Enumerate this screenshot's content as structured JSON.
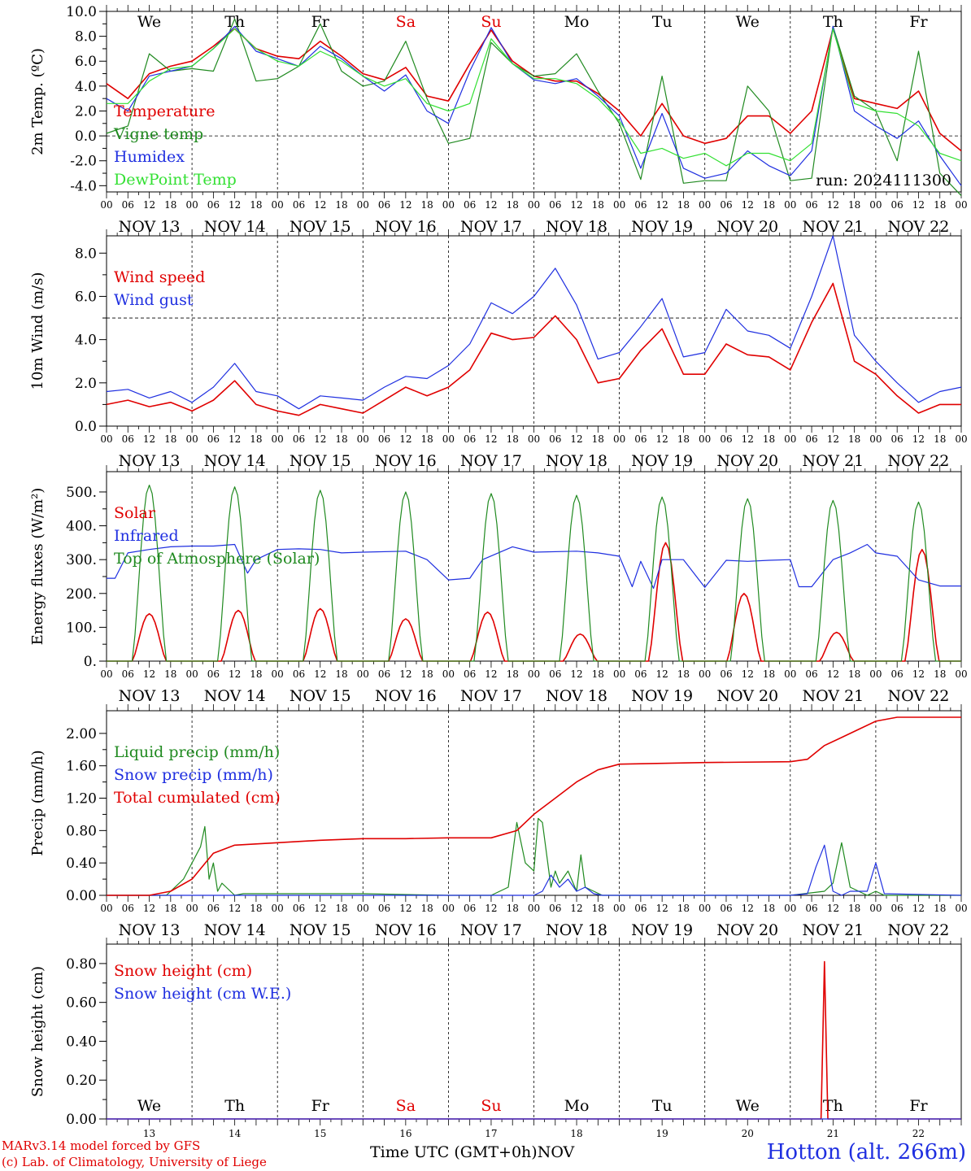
{
  "footer": {
    "credit_line1": "MARv3.14 model forced by GFS",
    "credit_line2": "(c) Lab. of Climatology, University of Liege",
    "xaxis_title": "Time UTC (GMT+0h)NOV",
    "station": "Hotton (alt. 266m)"
  },
  "colors": {
    "red": "#e00000",
    "green": "#208a20",
    "blue": "#1f2fe0",
    "light_green": "#33e033",
    "axis": "#000000",
    "weekend": "#e00000"
  },
  "time_axis": {
    "hour_ticks": [
      "00",
      "06",
      "12",
      "18"
    ],
    "dates": [
      "NOV 13",
      "NOV 14",
      "NOV 15",
      "NOV 16",
      "NOV 17",
      "NOV 18",
      "NOV 19",
      "NOV 20",
      "NOV 21",
      "NOV 22"
    ],
    "weekdays": [
      "We",
      "Th",
      "Fr",
      "Sa",
      "Su",
      "Mo",
      "Tu",
      "We",
      "Th",
      "Fr"
    ],
    "weekday_is_weekend": [
      false,
      false,
      false,
      true,
      true,
      false,
      false,
      false,
      false,
      false
    ],
    "day_numbers": [
      "13",
      "14",
      "15",
      "16",
      "17",
      "18",
      "19",
      "20",
      "21",
      "22"
    ]
  },
  "chart_data": [
    {
      "type": "line",
      "id": "temperature",
      "ylabel": "2m Temp. (ºC)",
      "ylim": [
        -4.5,
        10
      ],
      "yticks": [
        "-4.0",
        "-2.0",
        "0.0",
        "2.0",
        "4.0",
        "6.0",
        "8.0",
        "10.0"
      ],
      "ytick_values": [
        -4,
        -2,
        0,
        2,
        4,
        6,
        8,
        10
      ],
      "reference_line": 0,
      "annotation": "run: 2024111300",
      "x_unit": "days since Nov 13 00 UTC",
      "series": [
        {
          "name": "Temperature",
          "color": "red",
          "x": [
            0,
            0.25,
            0.5,
            0.75,
            1,
            1.25,
            1.5,
            1.75,
            2,
            2.25,
            2.5,
            2.75,
            3,
            3.25,
            3.5,
            3.75,
            4,
            4.25,
            4.5,
            4.75,
            5,
            5.25,
            5.5,
            5.75,
            6,
            6.25,
            6.5,
            6.75,
            7,
            7.25,
            7.5,
            7.75,
            8,
            8.25,
            8.5,
            8.75,
            9,
            9.25,
            9.5,
            9.75,
            10
          ],
          "values": [
            4.2,
            3.0,
            5.0,
            5.6,
            6.0,
            7.2,
            8.6,
            7.0,
            6.4,
            6.2,
            7.6,
            6.4,
            5.0,
            4.5,
            5.5,
            3.2,
            2.8,
            5.8,
            8.5,
            6.0,
            4.8,
            4.4,
            4.4,
            3.4,
            2.0,
            0.0,
            2.6,
            0.0,
            -0.6,
            -0.2,
            1.6,
            1.6,
            0.2,
            2.0,
            8.6,
            3.0,
            2.6,
            2.2,
            3.6,
            0.2,
            -1.2
          ]
        },
        {
          "name": "Vigne temp",
          "color": "green",
          "x": [
            0,
            0.25,
            0.5,
            0.75,
            1,
            1.25,
            1.5,
            1.75,
            2,
            2.25,
            2.5,
            2.75,
            3,
            3.25,
            3.5,
            3.75,
            4,
            4.25,
            4.5,
            4.75,
            5,
            5.25,
            5.5,
            5.75,
            6,
            6.25,
            6.5,
            6.75,
            7,
            7.25,
            7.5,
            7.75,
            8,
            8.25,
            8.5,
            8.75,
            9,
            9.25,
            9.5,
            9.75,
            10
          ],
          "values": [
            0.2,
            0.8,
            6.6,
            5.2,
            5.4,
            5.2,
            9.4,
            4.4,
            4.6,
            5.6,
            9.0,
            5.2,
            4.0,
            4.4,
            7.6,
            3.0,
            -0.6,
            -0.2,
            7.5,
            5.8,
            4.8,
            5.0,
            6.6,
            3.6,
            1.0,
            -3.5,
            4.8,
            -3.8,
            -3.6,
            -3.6,
            4.0,
            2.0,
            -3.6,
            -3.4,
            8.8,
            3.2,
            2.0,
            -2.0,
            6.8,
            -3.0,
            -4.8
          ]
        },
        {
          "name": "Humidex",
          "color": "blue",
          "x": [
            0,
            0.25,
            0.5,
            0.75,
            1,
            1.25,
            1.5,
            1.75,
            2,
            2.25,
            2.5,
            2.75,
            3,
            3.25,
            3.5,
            3.75,
            4,
            4.25,
            4.5,
            4.75,
            5,
            5.25,
            5.5,
            5.75,
            6,
            6.25,
            6.5,
            6.75,
            7,
            7.25,
            7.5,
            7.75,
            8,
            8.25,
            8.5,
            8.75,
            9,
            9.25,
            9.5,
            9.75,
            10
          ],
          "values": [
            3.0,
            2.0,
            4.8,
            5.2,
            5.6,
            7.0,
            8.8,
            6.8,
            6.2,
            5.6,
            7.2,
            6.2,
            4.8,
            3.6,
            4.9,
            2.0,
            1.0,
            5.2,
            8.7,
            5.8,
            4.5,
            4.2,
            4.6,
            3.2,
            1.6,
            -2.6,
            1.8,
            -2.6,
            -3.4,
            -3.0,
            -1.2,
            -2.4,
            -3.2,
            -1.2,
            8.8,
            2.0,
            0.8,
            -0.2,
            1.2,
            -1.6,
            -4.0
          ]
        },
        {
          "name": "DewPoint Temp",
          "color": "light_green",
          "x": [
            0,
            0.25,
            0.5,
            0.75,
            1,
            1.25,
            1.5,
            1.75,
            2,
            2.25,
            2.5,
            2.75,
            3,
            3.25,
            3.5,
            3.75,
            4,
            4.25,
            4.5,
            4.75,
            5,
            5.25,
            5.5,
            5.75,
            6,
            6.25,
            6.5,
            6.75,
            7,
            7.25,
            7.5,
            7.75,
            8,
            8.25,
            8.5,
            8.75,
            9,
            9.25,
            9.5,
            9.75,
            10
          ],
          "values": [
            2.6,
            2.6,
            4.4,
            5.4,
            5.6,
            7.0,
            8.6,
            7.0,
            6.0,
            5.6,
            6.8,
            6.0,
            4.8,
            4.0,
            4.6,
            2.6,
            2.0,
            2.6,
            7.8,
            5.8,
            4.6,
            4.6,
            4.2,
            3.0,
            1.2,
            -1.4,
            -1.0,
            -1.8,
            -1.4,
            -2.4,
            -1.4,
            -1.4,
            -2.0,
            -0.6,
            8.6,
            2.6,
            2.0,
            1.8,
            0.8,
            -1.4,
            -2.0
          ]
        }
      ],
      "legend_position": "left"
    },
    {
      "type": "line",
      "id": "wind",
      "ylabel": "10m Wind (m/s)",
      "ylim": [
        0,
        8.8
      ],
      "yticks": [
        "0.0",
        "2.0",
        "4.0",
        "6.0",
        "8.0"
      ],
      "ytick_values": [
        0,
        2,
        4,
        6,
        8
      ],
      "reference_line": 5,
      "x_unit": "days since Nov 13 00 UTC",
      "series": [
        {
          "name": "Wind speed",
          "color": "red",
          "x": [
            0,
            0.25,
            0.5,
            0.75,
            1,
            1.25,
            1.5,
            1.75,
            2,
            2.25,
            2.5,
            2.75,
            3,
            3.25,
            3.5,
            3.75,
            4,
            4.25,
            4.5,
            4.75,
            5,
            5.25,
            5.5,
            5.75,
            6,
            6.25,
            6.5,
            6.75,
            7,
            7.25,
            7.5,
            7.75,
            8,
            8.25,
            8.5,
            8.75,
            9,
            9.25,
            9.5,
            9.75,
            10
          ],
          "values": [
            1.0,
            1.2,
            0.9,
            1.1,
            0.7,
            1.2,
            2.1,
            1.0,
            0.7,
            0.5,
            1.0,
            0.8,
            0.6,
            1.2,
            1.8,
            1.4,
            1.8,
            2.6,
            4.3,
            4.0,
            4.1,
            5.1,
            4.0,
            2.0,
            2.2,
            3.5,
            4.5,
            2.4,
            2.4,
            3.8,
            3.3,
            3.2,
            2.6,
            4.8,
            6.6,
            3.0,
            2.4,
            1.4,
            0.6,
            1.0,
            1.0
          ]
        },
        {
          "name": "Wind gust",
          "color": "blue",
          "x": [
            0,
            0.25,
            0.5,
            0.75,
            1,
            1.25,
            1.5,
            1.75,
            2,
            2.25,
            2.5,
            2.75,
            3,
            3.25,
            3.5,
            3.75,
            4,
            4.25,
            4.5,
            4.75,
            5,
            5.25,
            5.5,
            5.75,
            6,
            6.25,
            6.5,
            6.75,
            7,
            7.25,
            7.5,
            7.75,
            8,
            8.25,
            8.5,
            8.75,
            9,
            9.25,
            9.5,
            9.75,
            10
          ],
          "values": [
            1.6,
            1.7,
            1.3,
            1.6,
            1.1,
            1.8,
            2.9,
            1.6,
            1.4,
            0.8,
            1.4,
            1.3,
            1.2,
            1.8,
            2.3,
            2.2,
            2.8,
            3.8,
            5.7,
            5.2,
            6.0,
            7.3,
            5.6,
            3.1,
            3.4,
            4.6,
            5.9,
            3.2,
            3.4,
            5.4,
            4.4,
            4.2,
            3.6,
            6.0,
            8.8,
            4.2,
            3.0,
            2.0,
            1.1,
            1.6,
            1.8
          ]
        }
      ],
      "legend_position": "left"
    },
    {
      "type": "line",
      "id": "energy",
      "ylabel": "Energy fluxes (W/m²)",
      "ylim": [
        0,
        560
      ],
      "yticks": [
        "0.",
        "100.",
        "200.",
        "300.",
        "400.",
        "500."
      ],
      "ytick_values": [
        0,
        100,
        200,
        300,
        400,
        500
      ],
      "x_unit": "days since Nov 13 00 UTC",
      "series": [
        {
          "name": "Solar",
          "color": "red",
          "daily_peaks": [
            140,
            150,
            155,
            125,
            145,
            80,
            350,
            200,
            85,
            330
          ],
          "daily_peak_hour": [
            12,
            13,
            12,
            12,
            11,
            13,
            13,
            11,
            13,
            13
          ]
        },
        {
          "name": "Infrared",
          "color": "blue",
          "x": [
            0,
            0.1,
            0.25,
            0.5,
            0.75,
            1,
            1.25,
            1.5,
            1.65,
            1.75,
            2,
            2.25,
            2.5,
            2.75,
            3,
            3.5,
            3.75,
            4,
            4.25,
            4.4,
            4.75,
            5,
            5.5,
            5.75,
            6,
            6.15,
            6.25,
            6.4,
            6.5,
            6.75,
            7,
            7.25,
            7.5,
            7.75,
            8,
            8.1,
            8.25,
            8.5,
            8.7,
            8.9,
            9,
            9.25,
            9.5,
            9.75,
            10
          ],
          "values": [
            245,
            245,
            320,
            330,
            338,
            340,
            340,
            345,
            260,
            300,
            330,
            332,
            330,
            320,
            322,
            325,
            300,
            240,
            245,
            300,
            338,
            322,
            325,
            320,
            310,
            220,
            295,
            215,
            300,
            300,
            218,
            298,
            295,
            298,
            300,
            220,
            220,
            300,
            320,
            345,
            320,
            310,
            240,
            222,
            222
          ]
        },
        {
          "name": "Top of Atmosphere (Solar)",
          "color": "green",
          "daily_peaks": [
            520,
            515,
            505,
            500,
            495,
            490,
            485,
            480,
            475,
            470
          ],
          "daily_peak_hour": [
            12,
            12,
            12,
            12,
            12,
            12,
            12,
            12,
            12,
            12
          ]
        }
      ],
      "legend_position": "left"
    },
    {
      "type": "line",
      "id": "precip",
      "ylabel": "Precip (mm/h)",
      "ylim": [
        0,
        2.28
      ],
      "yticks": [
        "0.00",
        "0.40",
        "0.80",
        "1.20",
        "1.60",
        "2.00"
      ],
      "ytick_values": [
        0,
        0.4,
        0.8,
        1.2,
        1.6,
        2.0
      ],
      "x_unit": "days since Nov 13 00 UTC",
      "series": [
        {
          "name": "Liquid precip (mm/h)",
          "color": "green",
          "x": [
            0,
            0.7,
            0.9,
            1.0,
            1.1,
            1.15,
            1.2,
            1.25,
            1.3,
            1.35,
            1.4,
            1.5,
            1.6,
            2.0,
            3.0,
            4.0,
            4.5,
            4.7,
            4.8,
            4.9,
            5.0,
            5.05,
            5.1,
            5.2,
            5.25,
            5.3,
            5.4,
            5.5,
            5.55,
            5.6,
            5.7,
            5.8,
            6.0,
            8.0,
            8.4,
            8.5,
            8.6,
            8.7,
            8.8,
            8.9,
            9.0,
            9.1,
            10
          ],
          "values": [
            0,
            0,
            0.2,
            0.4,
            0.6,
            0.85,
            0.2,
            0.4,
            0.05,
            0.15,
            0.1,
            0.0,
            0.02,
            0.02,
            0.02,
            0,
            0,
            0.1,
            0.9,
            0.4,
            0.3,
            0.95,
            0.9,
            0.1,
            0.3,
            0.15,
            0.3,
            0.05,
            0.5,
            0.1,
            0.05,
            0.0,
            0,
            0,
            0.05,
            0.15,
            0.65,
            0.1,
            0.05,
            0.0,
            0.05,
            0,
            0
          ]
        },
        {
          "name": "Snow precip (mm/h)",
          "color": "blue",
          "x": [
            0,
            5.0,
            5.1,
            5.2,
            5.3,
            5.4,
            5.5,
            5.6,
            5.7,
            5.8,
            6.0,
            8.0,
            8.2,
            8.3,
            8.4,
            8.5,
            8.6,
            8.7,
            8.8,
            8.9,
            9.0,
            9.1,
            10
          ],
          "values": [
            0,
            0,
            0.05,
            0.25,
            0.1,
            0.2,
            0.05,
            0.1,
            0.02,
            0,
            0,
            0,
            0.02,
            0.35,
            0.62,
            0.05,
            0.0,
            0.05,
            0.05,
            0.05,
            0.4,
            0.02,
            0
          ]
        },
        {
          "name": "Total cumulated (cm)",
          "color": "red",
          "x": [
            0,
            0.5,
            0.75,
            1.0,
            1.25,
            1.5,
            2.0,
            2.5,
            3.0,
            3.5,
            4.0,
            4.5,
            4.8,
            5.0,
            5.25,
            5.5,
            5.75,
            6.0,
            7.0,
            8.0,
            8.2,
            8.4,
            8.6,
            8.8,
            9.0,
            9.25,
            10
          ],
          "values": [
            0,
            0,
            0.05,
            0.2,
            0.52,
            0.62,
            0.65,
            0.68,
            0.7,
            0.7,
            0.71,
            0.71,
            0.8,
            1.0,
            1.2,
            1.4,
            1.55,
            1.62,
            1.64,
            1.65,
            1.68,
            1.85,
            1.95,
            2.05,
            2.15,
            2.2,
            2.2
          ]
        }
      ],
      "legend_position": "left"
    },
    {
      "type": "line",
      "id": "snow",
      "ylabel": "Snow height (cm)",
      "ylim": [
        0,
        0.9
      ],
      "yticks": [
        "0.00",
        "0.20",
        "0.40",
        "0.60",
        "0.80"
      ],
      "ytick_values": [
        0,
        0.2,
        0.4,
        0.6,
        0.8
      ],
      "x_unit": "days since Nov 13 00 UTC",
      "series": [
        {
          "name": "Snow height (cm)",
          "color": "red",
          "x": [
            0,
            8.36,
            8.38,
            8.4,
            8.42,
            8.44,
            10
          ],
          "values": [
            0,
            0,
            0.4,
            0.81,
            0.4,
            0,
            0
          ]
        },
        {
          "name": "Snow height (cm W.E.)",
          "color": "blue",
          "x": [
            0,
            10
          ],
          "values": [
            0,
            0
          ]
        }
      ],
      "legend_position": "left"
    }
  ]
}
